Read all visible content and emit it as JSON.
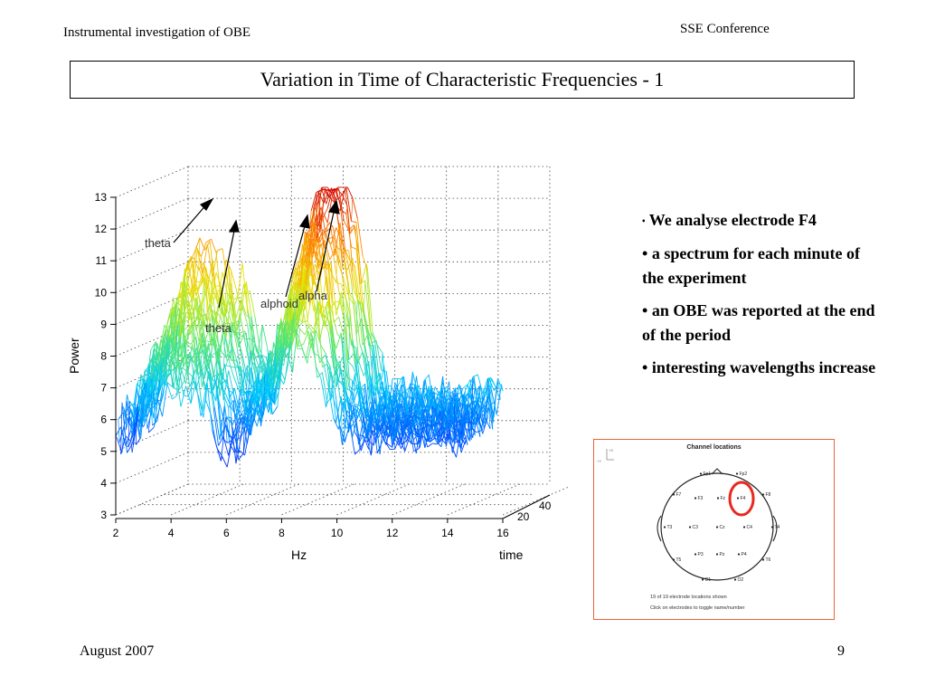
{
  "header": {
    "left": "Instrumental investigation of OBE",
    "right": "SSE Conference"
  },
  "title": "Variation in Time of Characteristic Frequencies - 1",
  "plot": {
    "ylabel": "Power",
    "xlabel": "Hz",
    "zlabel": "time",
    "y_ticks": [
      "3",
      "4",
      "5",
      "6",
      "7",
      "8",
      "9",
      "10",
      "11",
      "12",
      "13"
    ],
    "x_ticks": [
      "2",
      "4",
      "6",
      "8",
      "10",
      "12",
      "14",
      "16"
    ],
    "z_ticks": [
      "20",
      "40"
    ],
    "annotations": [
      "theta",
      "theta",
      "alphoid",
      "alpha"
    ]
  },
  "bullets": [
    "We analyse electrode F4",
    "a spectrum for each minute of the experiment",
    "an OBE was reported at the end of the period",
    "interesting wavelengths increase"
  ],
  "channel_panel": {
    "title": "Channel locations",
    "electrodes": [
      "Fp1",
      "Fp2",
      "F7",
      "F3",
      "Fz",
      "F4",
      "F8",
      "T3",
      "C3",
      "Cz",
      "C4",
      "T4",
      "T5",
      "P3",
      "Pz",
      "P4",
      "T6",
      "O1",
      "O2"
    ],
    "footer_line1": "19 of 19 electrode locations shown",
    "footer_line2": "Click on electrodes to toggle name/number",
    "highlight_color": "#e8281e"
  },
  "footer": {
    "left": "August 2007",
    "right": "9"
  }
}
